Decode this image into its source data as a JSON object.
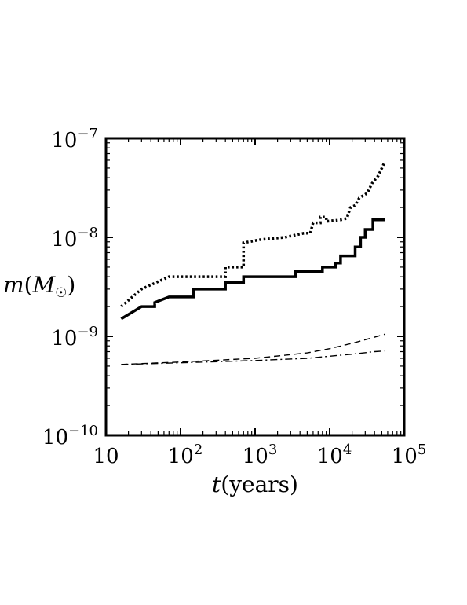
{
  "chart_data": {
    "type": "line",
    "title": "",
    "xlabel": "t(years)",
    "ylabel": "m(M☉)",
    "xscale": "log",
    "yscale": "log",
    "xlim": [
      10,
      100000
    ],
    "ylim": [
      1e-10,
      1e-07
    ],
    "grid": false,
    "x_ticks": [
      {
        "value": 10,
        "base": "10",
        "exp": ""
      },
      {
        "value": 100,
        "base": "10",
        "exp": "2"
      },
      {
        "value": 1000,
        "base": "10",
        "exp": "3"
      },
      {
        "value": 10000,
        "base": "10",
        "exp": "4"
      },
      {
        "value": 100000,
        "base": "10",
        "exp": "5"
      }
    ],
    "y_ticks": [
      {
        "value": 1e-10,
        "base": "10",
        "exp": "−10"
      },
      {
        "value": 1e-09,
        "base": "10",
        "exp": "−9"
      },
      {
        "value": 1e-08,
        "base": "10",
        "exp": "−8"
      },
      {
        "value": 1e-07,
        "base": "10",
        "exp": "−7"
      }
    ],
    "series": [
      {
        "style": "dotted",
        "stroke_width": 3.5,
        "points": [
          [
            16,
            2e-09
          ],
          [
            30,
            3e-09
          ],
          [
            70,
            4e-09
          ],
          [
            400,
            4e-09
          ],
          [
            400,
            5e-09
          ],
          [
            700,
            5e-09
          ],
          [
            700,
            8.8e-09
          ],
          [
            1200,
            9.5e-09
          ],
          [
            2500,
            1e-08
          ],
          [
            4500,
            1.1e-08
          ],
          [
            5500,
            1.1e-08
          ],
          [
            6000,
            1.4e-08
          ],
          [
            7500,
            1.4e-08
          ],
          [
            7500,
            1.6e-08
          ],
          [
            9000,
            1.6e-08
          ],
          [
            9000,
            1.45e-08
          ],
          [
            14000,
            1.5e-08
          ],
          [
            17000,
            1.55e-08
          ],
          [
            19000,
            2e-08
          ],
          [
            22000,
            2.1e-08
          ],
          [
            25000,
            2.5e-08
          ],
          [
            32000,
            2.8e-08
          ],
          [
            37000,
            3.5e-08
          ],
          [
            45000,
            4.2e-08
          ],
          [
            55000,
            5.8e-08
          ]
        ]
      },
      {
        "style": "solid",
        "stroke_width": 3.5,
        "points": [
          [
            16,
            1.5e-09
          ],
          [
            30,
            2e-09
          ],
          [
            45,
            2e-09
          ],
          [
            45,
            2.2e-09
          ],
          [
            70,
            2.5e-09
          ],
          [
            150,
            2.5e-09
          ],
          [
            150,
            3e-09
          ],
          [
            400,
            3e-09
          ],
          [
            400,
            3.5e-09
          ],
          [
            700,
            3.5e-09
          ],
          [
            700,
            4e-09
          ],
          [
            3500,
            4e-09
          ],
          [
            3500,
            4.5e-09
          ],
          [
            8000,
            4.5e-09
          ],
          [
            8000,
            5e-09
          ],
          [
            12000,
            5e-09
          ],
          [
            12000,
            5.5e-09
          ],
          [
            14000,
            5.5e-09
          ],
          [
            14000,
            6.5e-09
          ],
          [
            22000,
            6.5e-09
          ],
          [
            22000,
            8e-09
          ],
          [
            26000,
            8e-09
          ],
          [
            26000,
            1e-08
          ],
          [
            30000,
            1e-08
          ],
          [
            30000,
            1.2e-08
          ],
          [
            38000,
            1.2e-08
          ],
          [
            38000,
            1.5e-08
          ],
          [
            55000,
            1.5e-08
          ]
        ]
      },
      {
        "style": "dashed",
        "stroke_width": 1.4,
        "points": [
          [
            16,
            5.2e-10
          ],
          [
            100,
            5.5e-10
          ],
          [
            1000,
            6e-10
          ],
          [
            5000,
            6.8e-10
          ],
          [
            10000,
            7.5e-10
          ],
          [
            20000,
            8.5e-10
          ],
          [
            40000,
            9.8e-10
          ],
          [
            55000,
            1.05e-09
          ]
        ]
      },
      {
        "style": "dashdot",
        "stroke_width": 1.4,
        "points": [
          [
            16,
            5.2e-10
          ],
          [
            100,
            5.4e-10
          ],
          [
            1000,
            5.7e-10
          ],
          [
            5000,
            6e-10
          ],
          [
            10000,
            6.3e-10
          ],
          [
            20000,
            6.6e-10
          ],
          [
            40000,
            7e-10
          ],
          [
            55000,
            7.1e-10
          ]
        ]
      }
    ]
  }
}
